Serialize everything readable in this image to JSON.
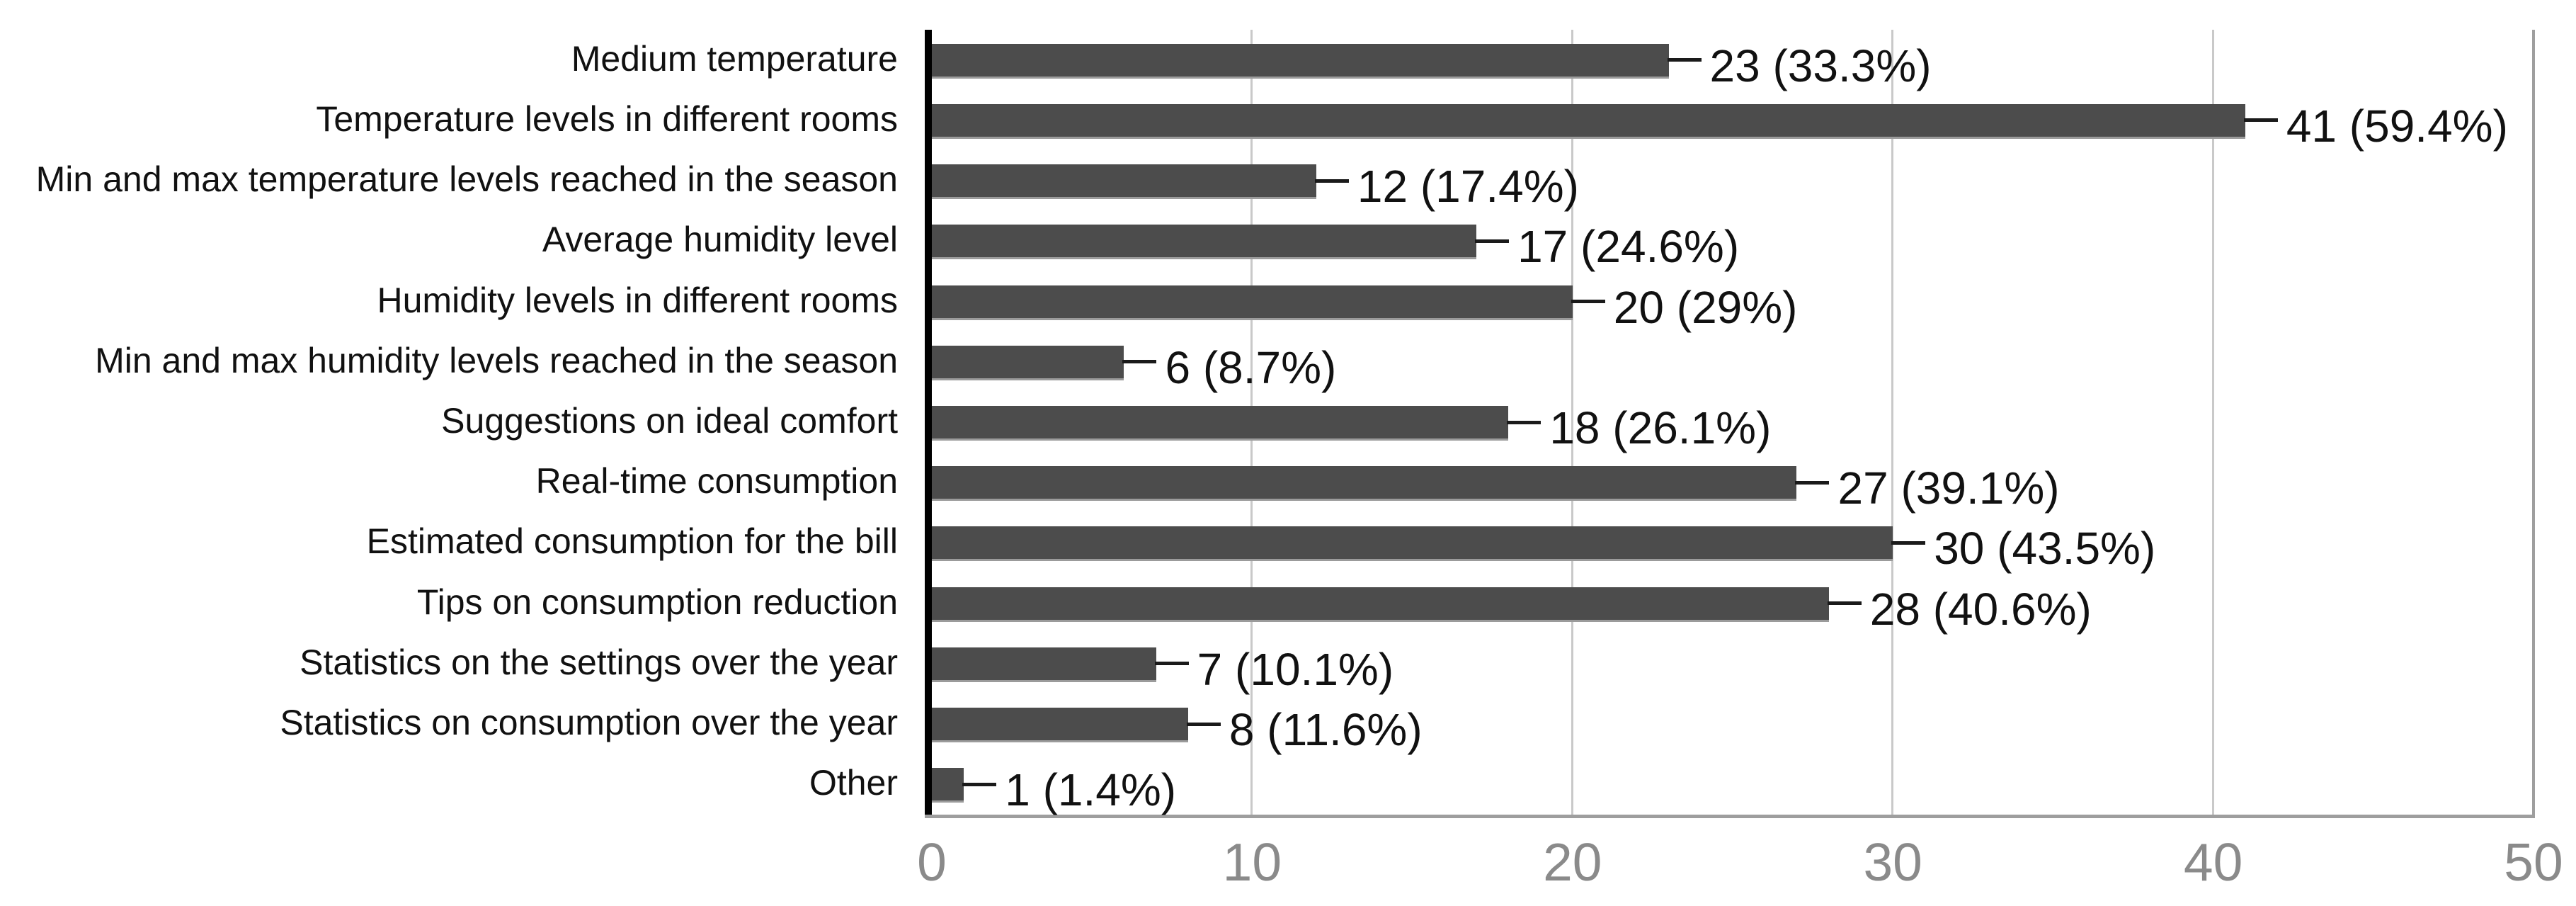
{
  "chart_data": {
    "type": "bar",
    "orientation": "horizontal",
    "title": "",
    "xlabel": "",
    "ylabel": "",
    "categories": [
      "Medium temperature",
      "Temperature levels in different rooms",
      "Min and max temperature levels reached in the season",
      "Average humidity level",
      "Humidity levels in different rooms",
      "Min and max humidity levels reached in the season",
      "Suggestions on ideal comfort",
      "Real-time consumption",
      "Estimated consumption for the bill",
      "Tips on consumption reduction",
      "Statistics on the settings over the year",
      "Statistics on consumption over the year",
      "Other"
    ],
    "values": [
      23,
      41,
      12,
      17,
      20,
      6,
      18,
      27,
      30,
      28,
      7,
      8,
      1
    ],
    "value_labels": [
      "23 (33.3%)",
      "41 (59.4%)",
      "12 (17.4%)",
      "17 (24.6%)",
      "20 (29%)",
      "6 (8.7%)",
      "18 (26.1%)",
      "27 (39.1%)",
      "30 (43.5%)",
      "28 (40.6%)",
      "7 (10.1%)",
      "8 (11.6%)",
      "1 (1.4%)"
    ],
    "xlim": [
      0,
      50
    ],
    "xticks": [
      "0",
      "10",
      "20",
      "30",
      "40",
      "50"
    ],
    "grid": true,
    "legend": "none",
    "colors": {
      "bar": "#4c4c4c",
      "bar_bottom_edge": "#9b9b9b",
      "gridline": "#c9c9c9",
      "axis_border": "#9e9e9e",
      "zero_axis": "#000000",
      "tick_text": "#8a8a8a",
      "label_text": "#111111",
      "value_text": "#111111",
      "callout_line": "#1a1a1a",
      "background": "#ffffff"
    }
  }
}
